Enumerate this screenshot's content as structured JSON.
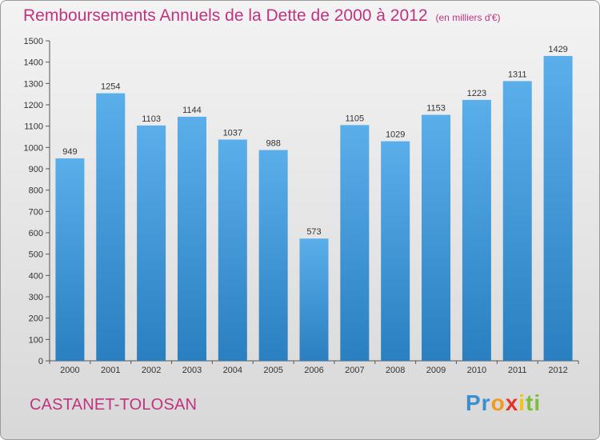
{
  "title": "Remboursements Annuels de la Dette de 2000 à 2012",
  "unit": "(en milliers d'€)",
  "commune": "CASTANET-TOLOSAN",
  "logo": {
    "parts": [
      "Pr",
      "o",
      "x",
      "i",
      "ti"
    ],
    "colors": [
      "#3a8fd0",
      "#f29a1d",
      "#e2352a",
      "#f2c316",
      "#7bbf3b"
    ]
  },
  "colors": {
    "bar": "#3f99dd",
    "title": "#c0337f"
  },
  "chart_data": {
    "type": "bar",
    "categories": [
      "2000",
      "2001",
      "2002",
      "2003",
      "2004",
      "2005",
      "2006",
      "2007",
      "2008",
      "2009",
      "2010",
      "2011",
      "2012"
    ],
    "values": [
      949,
      1254,
      1103,
      1144,
      1037,
      988,
      573,
      1105,
      1029,
      1153,
      1223,
      1311,
      1429
    ],
    "ylim": [
      0,
      1500
    ],
    "yticks": [
      0,
      100,
      200,
      300,
      400,
      500,
      600,
      700,
      800,
      900,
      1000,
      1100,
      1200,
      1300,
      1400,
      1500
    ],
    "grid": false
  }
}
